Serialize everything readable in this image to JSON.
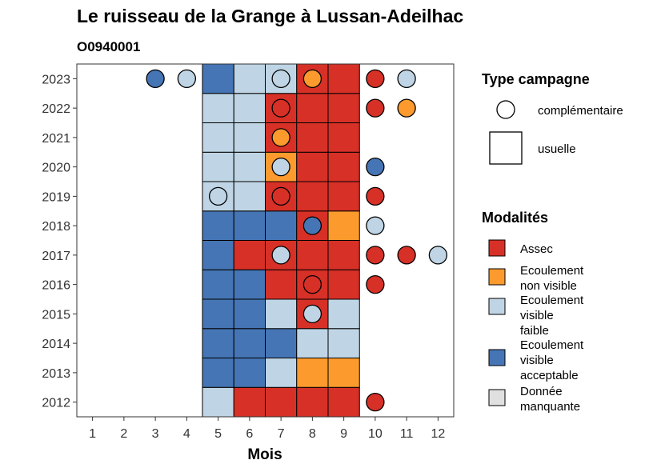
{
  "title": "Le ruisseau de la Grange à Lussan-Adeilhac",
  "subtitle": "O0940001",
  "chart_data": {
    "type": "heatmap",
    "xlabel": "Mois",
    "ylabel": "",
    "x_ticks": [
      "1",
      "2",
      "3",
      "4",
      "5",
      "6",
      "7",
      "8",
      "9",
      "10",
      "11",
      "12"
    ],
    "y_ticks": [
      "2012",
      "2013",
      "2014",
      "2015",
      "2016",
      "2017",
      "2018",
      "2019",
      "2020",
      "2021",
      "2022",
      "2023"
    ],
    "grid": false,
    "legend_position": "right",
    "colors": {
      "Assec": "#D73027",
      "Ecoulement non visible": "#FC9A2D",
      "Ecoulement visible faible": "#BFD5E5",
      "Ecoulement visible acceptable": "#4575B4",
      "Donnée manquante": "#E0E0E0"
    },
    "usuelle": [
      {
        "year": 2012,
        "month": 5,
        "modalite": "Ecoulement visible faible"
      },
      {
        "year": 2012,
        "month": 6,
        "modalite": "Assec"
      },
      {
        "year": 2012,
        "month": 7,
        "modalite": "Assec"
      },
      {
        "year": 2012,
        "month": 8,
        "modalite": "Assec"
      },
      {
        "year": 2012,
        "month": 9,
        "modalite": "Assec"
      },
      {
        "year": 2013,
        "month": 5,
        "modalite": "Ecoulement visible acceptable"
      },
      {
        "year": 2013,
        "month": 6,
        "modalite": "Ecoulement visible acceptable"
      },
      {
        "year": 2013,
        "month": 7,
        "modalite": "Ecoulement visible faible"
      },
      {
        "year": 2013,
        "month": 8,
        "modalite": "Ecoulement non visible"
      },
      {
        "year": 2013,
        "month": 9,
        "modalite": "Ecoulement non visible"
      },
      {
        "year": 2014,
        "month": 5,
        "modalite": "Ecoulement visible acceptable"
      },
      {
        "year": 2014,
        "month": 6,
        "modalite": "Ecoulement visible acceptable"
      },
      {
        "year": 2014,
        "month": 7,
        "modalite": "Ecoulement visible acceptable"
      },
      {
        "year": 2014,
        "month": 8,
        "modalite": "Ecoulement visible faible"
      },
      {
        "year": 2014,
        "month": 9,
        "modalite": "Ecoulement visible faible"
      },
      {
        "year": 2015,
        "month": 5,
        "modalite": "Ecoulement visible acceptable"
      },
      {
        "year": 2015,
        "month": 6,
        "modalite": "Ecoulement visible acceptable"
      },
      {
        "year": 2015,
        "month": 7,
        "modalite": "Ecoulement visible faible"
      },
      {
        "year": 2015,
        "month": 8,
        "modalite": "Assec"
      },
      {
        "year": 2015,
        "month": 9,
        "modalite": "Ecoulement visible faible"
      },
      {
        "year": 2016,
        "month": 5,
        "modalite": "Ecoulement visible acceptable"
      },
      {
        "year": 2016,
        "month": 6,
        "modalite": "Ecoulement visible acceptable"
      },
      {
        "year": 2016,
        "month": 7,
        "modalite": "Assec"
      },
      {
        "year": 2016,
        "month": 8,
        "modalite": "Assec"
      },
      {
        "year": 2016,
        "month": 9,
        "modalite": "Assec"
      },
      {
        "year": 2017,
        "month": 5,
        "modalite": "Ecoulement visible acceptable"
      },
      {
        "year": 2017,
        "month": 6,
        "modalite": "Assec"
      },
      {
        "year": 2017,
        "month": 7,
        "modalite": "Assec"
      },
      {
        "year": 2017,
        "month": 8,
        "modalite": "Assec"
      },
      {
        "year": 2017,
        "month": 9,
        "modalite": "Assec"
      },
      {
        "year": 2018,
        "month": 5,
        "modalite": "Ecoulement visible acceptable"
      },
      {
        "year": 2018,
        "month": 6,
        "modalite": "Ecoulement visible acceptable"
      },
      {
        "year": 2018,
        "month": 7,
        "modalite": "Ecoulement visible acceptable"
      },
      {
        "year": 2018,
        "month": 8,
        "modalite": "Assec"
      },
      {
        "year": 2018,
        "month": 9,
        "modalite": "Ecoulement non visible"
      },
      {
        "year": 2019,
        "month": 5,
        "modalite": "Ecoulement visible faible"
      },
      {
        "year": 2019,
        "month": 6,
        "modalite": "Ecoulement visible faible"
      },
      {
        "year": 2019,
        "month": 7,
        "modalite": "Assec"
      },
      {
        "year": 2019,
        "month": 8,
        "modalite": "Assec"
      },
      {
        "year": 2019,
        "month": 9,
        "modalite": "Assec"
      },
      {
        "year": 2020,
        "month": 5,
        "modalite": "Ecoulement visible faible"
      },
      {
        "year": 2020,
        "month": 6,
        "modalite": "Ecoulement visible faible"
      },
      {
        "year": 2020,
        "month": 7,
        "modalite": "Ecoulement non visible"
      },
      {
        "year": 2020,
        "month": 8,
        "modalite": "Assec"
      },
      {
        "year": 2020,
        "month": 9,
        "modalite": "Assec"
      },
      {
        "year": 2021,
        "month": 5,
        "modalite": "Ecoulement visible faible"
      },
      {
        "year": 2021,
        "month": 6,
        "modalite": "Ecoulement visible faible"
      },
      {
        "year": 2021,
        "month": 7,
        "modalite": "Assec"
      },
      {
        "year": 2021,
        "month": 8,
        "modalite": "Assec"
      },
      {
        "year": 2021,
        "month": 9,
        "modalite": "Assec"
      },
      {
        "year": 2022,
        "month": 5,
        "modalite": "Ecoulement visible faible"
      },
      {
        "year": 2022,
        "month": 6,
        "modalite": "Ecoulement visible faible"
      },
      {
        "year": 2022,
        "month": 7,
        "modalite": "Assec"
      },
      {
        "year": 2022,
        "month": 8,
        "modalite": "Assec"
      },
      {
        "year": 2022,
        "month": 9,
        "modalite": "Assec"
      },
      {
        "year": 2023,
        "month": 5,
        "modalite": "Ecoulement visible acceptable"
      },
      {
        "year": 2023,
        "month": 6,
        "modalite": "Ecoulement visible faible"
      },
      {
        "year": 2023,
        "month": 7,
        "modalite": "Ecoulement visible faible"
      },
      {
        "year": 2023,
        "month": 8,
        "modalite": "Assec"
      },
      {
        "year": 2023,
        "month": 9,
        "modalite": "Assec"
      }
    ],
    "complementaire": [
      {
        "year": 2012,
        "month": 10,
        "modalite": "Assec"
      },
      {
        "year": 2015,
        "month": 8,
        "modalite": "Ecoulement visible faible"
      },
      {
        "year": 2016,
        "month": 8,
        "modalite": "Assec"
      },
      {
        "year": 2016,
        "month": 10,
        "modalite": "Assec"
      },
      {
        "year": 2017,
        "month": 7,
        "modalite": "Ecoulement visible faible"
      },
      {
        "year": 2017,
        "month": 10,
        "modalite": "Assec"
      },
      {
        "year": 2017,
        "month": 11,
        "modalite": "Assec"
      },
      {
        "year": 2017,
        "month": 12,
        "modalite": "Ecoulement visible faible"
      },
      {
        "year": 2018,
        "month": 8,
        "modalite": "Ecoulement visible acceptable"
      },
      {
        "year": 2018,
        "month": 10,
        "modalite": "Ecoulement visible faible"
      },
      {
        "year": 2019,
        "month": 5,
        "modalite": "Ecoulement visible faible"
      },
      {
        "year": 2019,
        "month": 7,
        "modalite": "Assec"
      },
      {
        "year": 2019,
        "month": 10,
        "modalite": "Assec"
      },
      {
        "year": 2020,
        "month": 7,
        "modalite": "Ecoulement visible faible"
      },
      {
        "year": 2020,
        "month": 10,
        "modalite": "Ecoulement visible acceptable"
      },
      {
        "year": 2021,
        "month": 7,
        "modalite": "Ecoulement non visible"
      },
      {
        "year": 2022,
        "month": 7,
        "modalite": "Assec"
      },
      {
        "year": 2022,
        "month": 10,
        "modalite": "Assec"
      },
      {
        "year": 2022,
        "month": 11,
        "modalite": "Ecoulement non visible"
      },
      {
        "year": 2023,
        "month": 3,
        "modalite": "Ecoulement visible acceptable"
      },
      {
        "year": 2023,
        "month": 4,
        "modalite": "Ecoulement visible faible"
      },
      {
        "year": 2023,
        "month": 7,
        "modalite": "Ecoulement visible faible"
      },
      {
        "year": 2023,
        "month": 8,
        "modalite": "Ecoulement non visible"
      },
      {
        "year": 2023,
        "month": 10,
        "modalite": "Assec"
      },
      {
        "year": 2023,
        "month": 11,
        "modalite": "Ecoulement visible faible"
      }
    ]
  },
  "legend_type": {
    "title": "Type campagne",
    "items": [
      "complémentaire",
      "usuelle"
    ]
  },
  "legend_modalites": {
    "title": "Modalités",
    "items": [
      {
        "key": "Assec",
        "lines": [
          "Assec"
        ]
      },
      {
        "key": "Ecoulement non visible",
        "lines": [
          "Ecoulement",
          "non visible"
        ]
      },
      {
        "key": "Ecoulement visible faible",
        "lines": [
          "Ecoulement",
          "visible",
          "faible"
        ]
      },
      {
        "key": "Ecoulement visible acceptable",
        "lines": [
          "Ecoulement",
          "visible",
          "acceptable"
        ]
      },
      {
        "key": "Donnée manquante",
        "lines": [
          "Donnée",
          "manquante"
        ]
      }
    ]
  }
}
